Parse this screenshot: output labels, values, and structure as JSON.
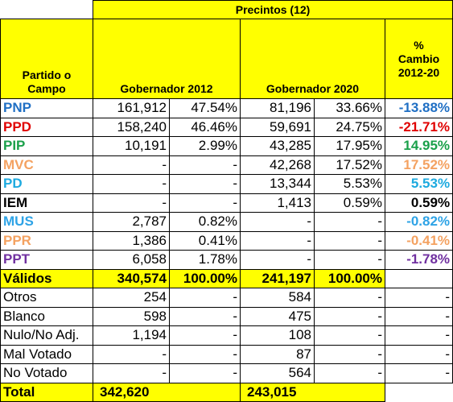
{
  "header": {
    "title": "Precintos (12)",
    "party_col": "Partido o Campo",
    "gov2012": "Gobernador 2012",
    "gov2020": "Gobernador 2020",
    "pct_change_line1": "%",
    "pct_change_line2": "Cambio",
    "pct_change_line3": "2012-20"
  },
  "colors": {
    "PNP": "#1f6fc4",
    "PPD": "#e00000",
    "PIP": "#1aa04a",
    "MVC": "#f4a261",
    "PD": "#1eaadf",
    "IEM": "#000000",
    "MUS": "#2ea3e6",
    "PPR": "#f4a261",
    "PPT": "#7030a0",
    "highlight": "#ffff00"
  },
  "parties": [
    {
      "name": "PNP",
      "v2012": "161,912",
      "p2012": "47.54%",
      "v2020": "81,196",
      "p2020": "33.66%",
      "change": "-13.88%",
      "change_color": "#1f6fc4"
    },
    {
      "name": "PPD",
      "v2012": "158,240",
      "p2012": "46.46%",
      "v2020": "59,691",
      "p2020": "24.75%",
      "change": "-21.71%",
      "change_color": "#e00000"
    },
    {
      "name": "PIP",
      "v2012": "10,191",
      "p2012": "2.99%",
      "v2020": "43,285",
      "p2020": "17.95%",
      "change": "14.95%",
      "change_color": "#1aa04a"
    },
    {
      "name": "MVC",
      "v2012": "-",
      "p2012": "-",
      "v2020": "42,268",
      "p2020": "17.52%",
      "change": "17.52%",
      "change_color": "#f4a261"
    },
    {
      "name": "PD",
      "v2012": "-",
      "p2012": "-",
      "v2020": "13,344",
      "p2020": "5.53%",
      "change": "5.53%",
      "change_color": "#1eaadf"
    },
    {
      "name": "IEM",
      "v2012": "-",
      "p2012": "-",
      "v2020": "1,413",
      "p2020": "0.59%",
      "change": "0.59%",
      "change_color": "#000000"
    },
    {
      "name": "MUS",
      "v2012": "2,787",
      "p2012": "0.82%",
      "v2020": "-",
      "p2020": "-",
      "change": "-0.82%",
      "change_color": "#2ea3e6"
    },
    {
      "name": "PPR",
      "v2012": "1,386",
      "p2012": "0.41%",
      "v2020": "-",
      "p2020": "-",
      "change": "-0.41%",
      "change_color": "#f4a261"
    },
    {
      "name": "PPT",
      "v2012": "6,058",
      "p2012": "1.78%",
      "v2020": "-",
      "p2020": "-",
      "change": "-1.78%",
      "change_color": "#7030a0"
    }
  ],
  "validos": {
    "label": "Válidos",
    "v2012": "340,574",
    "p2012": "100.00%",
    "v2020": "241,197",
    "p2020": "100.00%"
  },
  "others": [
    {
      "label": "Otros",
      "v2012": "254",
      "p2012": "-",
      "v2020": "584",
      "p2020": "-",
      "change": "-"
    },
    {
      "label": "Blanco",
      "v2012": "598",
      "p2012": "-",
      "v2020": "475",
      "p2020": "-",
      "change": "-"
    },
    {
      "label": "Nulo/No Adj.",
      "v2012": "1,194",
      "p2012": "-",
      "v2020": "108",
      "p2020": "-",
      "change": "-"
    },
    {
      "label": "Mal Votado",
      "v2012": "-",
      "p2012": "-",
      "v2020": "87",
      "p2020": "-",
      "change": "-"
    },
    {
      "label": "No Votado",
      "v2012": "-",
      "p2012": "-",
      "v2020": "564",
      "p2020": "-",
      "change": "-"
    }
  ],
  "total": {
    "label": "Total",
    "v2012": "342,620",
    "v2020": "243,015"
  }
}
